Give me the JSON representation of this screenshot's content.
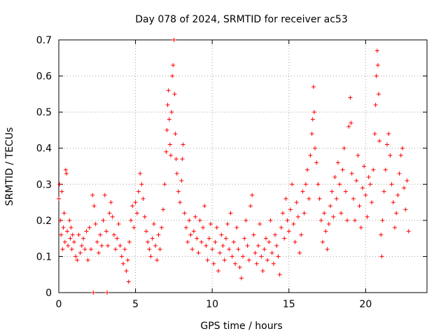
{
  "chart_data": {
    "type": "scatter",
    "title": "Day 078 of 2024, SRMTID for receiver ac53",
    "xlabel": "GPS time / hours",
    "ylabel": "SRMTID / TECUs",
    "xlim": [
      0,
      24
    ],
    "ylim": [
      0,
      0.7
    ],
    "xticks": [
      0,
      5,
      10,
      15,
      20
    ],
    "yticks": [
      0,
      0.1,
      0.2,
      0.3,
      0.4,
      0.5,
      0.6,
      0.7
    ],
    "grid": true,
    "marker": "+",
    "color": "#ff0000",
    "series": [
      {
        "name": "SRMTID",
        "points": [
          [
            0.0,
            0.26
          ],
          [
            0.05,
            0.3
          ],
          [
            0.1,
            0.2
          ],
          [
            0.15,
            0.16
          ],
          [
            0.2,
            0.28
          ],
          [
            0.25,
            0.12
          ],
          [
            0.3,
            0.18
          ],
          [
            0.35,
            0.22
          ],
          [
            0.4,
            0.14
          ],
          [
            0.45,
            0.34
          ],
          [
            0.5,
            0.33
          ],
          [
            0.55,
            0.17
          ],
          [
            0.6,
            0.13
          ],
          [
            0.7,
            0.2
          ],
          [
            0.75,
            0.15
          ],
          [
            0.8,
            0.18
          ],
          [
            0.85,
            0.12
          ],
          [
            0.9,
            0.16
          ],
          [
            1.0,
            0.14
          ],
          [
            1.1,
            0.1
          ],
          [
            1.2,
            0.09
          ],
          [
            1.3,
            0.16
          ],
          [
            1.4,
            0.11
          ],
          [
            1.5,
            0.13
          ],
          [
            1.6,
            0.15
          ],
          [
            1.7,
            0.12
          ],
          [
            1.8,
            0.17
          ],
          [
            1.9,
            0.09
          ],
          [
            2.0,
            0.18
          ],
          [
            2.1,
            0.12
          ],
          [
            2.2,
            0.27
          ],
          [
            2.25,
            0.0
          ],
          [
            2.3,
            0.24
          ],
          [
            2.4,
            0.19
          ],
          [
            2.5,
            0.14
          ],
          [
            2.6,
            0.11
          ],
          [
            2.7,
            0.16
          ],
          [
            2.8,
            0.13
          ],
          [
            2.9,
            0.2
          ],
          [
            3.0,
            0.27
          ],
          [
            3.1,
            0.17
          ],
          [
            3.15,
            0.0
          ],
          [
            3.2,
            0.13
          ],
          [
            3.3,
            0.22
          ],
          [
            3.4,
            0.25
          ],
          [
            3.5,
            0.21
          ],
          [
            3.6,
            0.16
          ],
          [
            3.7,
            0.12
          ],
          [
            3.8,
            0.15
          ],
          [
            3.9,
            0.19
          ],
          [
            4.0,
            0.13
          ],
          [
            4.1,
            0.1
          ],
          [
            4.2,
            0.08
          ],
          [
            4.3,
            0.12
          ],
          [
            4.4,
            0.06
          ],
          [
            4.5,
            0.09
          ],
          [
            4.55,
            0.03
          ],
          [
            4.6,
            0.14
          ],
          [
            4.7,
            0.2
          ],
          [
            4.8,
            0.24
          ],
          [
            4.9,
            0.18
          ],
          [
            5.0,
            0.25
          ],
          [
            5.1,
            0.22
          ],
          [
            5.2,
            0.28
          ],
          [
            5.3,
            0.33
          ],
          [
            5.4,
            0.3
          ],
          [
            5.5,
            0.26
          ],
          [
            5.6,
            0.21
          ],
          [
            5.7,
            0.17
          ],
          [
            5.8,
            0.14
          ],
          [
            5.9,
            0.12
          ],
          [
            6.0,
            0.1
          ],
          [
            6.1,
            0.15
          ],
          [
            6.2,
            0.19
          ],
          [
            6.3,
            0.13
          ],
          [
            6.4,
            0.09
          ],
          [
            6.5,
            0.16
          ],
          [
            6.6,
            0.12
          ],
          [
            6.7,
            0.18
          ],
          [
            6.8,
            0.23
          ],
          [
            6.9,
            0.3
          ],
          [
            7.0,
            0.39
          ],
          [
            7.05,
            0.45
          ],
          [
            7.1,
            0.52
          ],
          [
            7.15,
            0.56
          ],
          [
            7.2,
            0.48
          ],
          [
            7.25,
            0.41
          ],
          [
            7.3,
            0.38
          ],
          [
            7.35,
            0.5
          ],
          [
            7.4,
            0.6
          ],
          [
            7.45,
            0.63
          ],
          [
            7.5,
            0.7
          ],
          [
            7.55,
            0.55
          ],
          [
            7.6,
            0.44
          ],
          [
            7.65,
            0.37
          ],
          [
            7.7,
            0.33
          ],
          [
            7.8,
            0.28
          ],
          [
            7.9,
            0.25
          ],
          [
            8.0,
            0.31
          ],
          [
            8.05,
            0.37
          ],
          [
            8.1,
            0.41
          ],
          [
            8.2,
            0.22
          ],
          [
            8.3,
            0.18
          ],
          [
            8.4,
            0.14
          ],
          [
            8.5,
            0.2
          ],
          [
            8.6,
            0.16
          ],
          [
            8.7,
            0.12
          ],
          [
            8.8,
            0.17
          ],
          [
            8.9,
            0.21
          ],
          [
            9.0,
            0.15
          ],
          [
            9.1,
            0.11
          ],
          [
            9.2,
            0.2
          ],
          [
            9.3,
            0.14
          ],
          [
            9.4,
            0.18
          ],
          [
            9.5,
            0.24
          ],
          [
            9.6,
            0.13
          ],
          [
            9.7,
            0.09
          ],
          [
            9.8,
            0.15
          ],
          [
            9.9,
            0.19
          ],
          [
            10.0,
            0.12
          ],
          [
            10.1,
            0.08
          ],
          [
            10.2,
            0.14
          ],
          [
            10.3,
            0.18
          ],
          [
            10.4,
            0.06
          ],
          [
            10.5,
            0.11
          ],
          [
            10.6,
            0.16
          ],
          [
            10.7,
            0.13
          ],
          [
            10.8,
            0.09
          ],
          [
            10.9,
            0.15
          ],
          [
            11.0,
            0.19
          ],
          [
            11.1,
            0.12
          ],
          [
            11.2,
            0.22
          ],
          [
            11.3,
            0.1
          ],
          [
            11.4,
            0.14
          ],
          [
            11.5,
            0.08
          ],
          [
            11.6,
            0.18
          ],
          [
            11.7,
            0.12
          ],
          [
            11.8,
            0.07
          ],
          [
            11.9,
            0.04
          ],
          [
            12.0,
            0.1
          ],
          [
            12.1,
            0.15
          ],
          [
            12.2,
            0.2
          ],
          [
            12.3,
            0.13
          ],
          [
            12.4,
            0.09
          ],
          [
            12.5,
            0.24
          ],
          [
            12.6,
            0.27
          ],
          [
            12.7,
            0.16
          ],
          [
            12.8,
            0.11
          ],
          [
            12.9,
            0.08
          ],
          [
            13.0,
            0.13
          ],
          [
            13.1,
            0.19
          ],
          [
            13.2,
            0.1
          ],
          [
            13.3,
            0.06
          ],
          [
            13.4,
            0.12
          ],
          [
            13.5,
            0.15
          ],
          [
            13.6,
            0.09
          ],
          [
            13.7,
            0.14
          ],
          [
            13.8,
            0.2
          ],
          [
            13.9,
            0.11
          ],
          [
            14.0,
            0.08
          ],
          [
            14.1,
            0.16
          ],
          [
            14.2,
            0.13
          ],
          [
            14.3,
            0.1
          ],
          [
            14.4,
            0.05
          ],
          [
            14.5,
            0.18
          ],
          [
            14.6,
            0.22
          ],
          [
            14.7,
            0.15
          ],
          [
            14.8,
            0.26
          ],
          [
            14.9,
            0.2
          ],
          [
            15.0,
            0.17
          ],
          [
            15.1,
            0.23
          ],
          [
            15.2,
            0.3
          ],
          [
            15.3,
            0.19
          ],
          [
            15.4,
            0.14
          ],
          [
            15.5,
            0.25
          ],
          [
            15.6,
            0.21
          ],
          [
            15.7,
            0.11
          ],
          [
            15.8,
            0.16
          ],
          [
            15.9,
            0.28
          ],
          [
            16.0,
            0.22
          ],
          [
            16.1,
            0.3
          ],
          [
            16.2,
            0.34
          ],
          [
            16.3,
            0.26
          ],
          [
            16.4,
            0.38
          ],
          [
            16.5,
            0.44
          ],
          [
            16.55,
            0.48
          ],
          [
            16.6,
            0.57
          ],
          [
            16.65,
            0.5
          ],
          [
            16.7,
            0.4
          ],
          [
            16.8,
            0.36
          ],
          [
            16.9,
            0.3
          ],
          [
            17.0,
            0.26
          ],
          [
            17.1,
            0.2
          ],
          [
            17.2,
            0.14
          ],
          [
            17.3,
            0.22
          ],
          [
            17.4,
            0.17
          ],
          [
            17.5,
            0.12
          ],
          [
            17.6,
            0.19
          ],
          [
            17.7,
            0.24
          ],
          [
            17.8,
            0.28
          ],
          [
            17.9,
            0.21
          ],
          [
            18.0,
            0.32
          ],
          [
            18.1,
            0.26
          ],
          [
            18.2,
            0.36
          ],
          [
            18.3,
            0.3
          ],
          [
            18.4,
            0.22
          ],
          [
            18.5,
            0.34
          ],
          [
            18.6,
            0.4
          ],
          [
            18.7,
            0.28
          ],
          [
            18.8,
            0.2
          ],
          [
            18.9,
            0.46
          ],
          [
            19.0,
            0.54
          ],
          [
            19.05,
            0.47
          ],
          [
            19.1,
            0.33
          ],
          [
            19.2,
            0.26
          ],
          [
            19.3,
            0.2
          ],
          [
            19.4,
            0.31
          ],
          [
            19.5,
            0.38
          ],
          [
            19.6,
            0.24
          ],
          [
            19.7,
            0.18
          ],
          [
            19.8,
            0.29
          ],
          [
            19.9,
            0.35
          ],
          [
            20.0,
            0.27
          ],
          [
            20.1,
            0.21
          ],
          [
            20.2,
            0.32
          ],
          [
            20.3,
            0.3
          ],
          [
            20.4,
            0.25
          ],
          [
            20.5,
            0.34
          ],
          [
            20.6,
            0.44
          ],
          [
            20.65,
            0.52
          ],
          [
            20.7,
            0.6
          ],
          [
            20.75,
            0.67
          ],
          [
            20.8,
            0.63
          ],
          [
            20.85,
            0.55
          ],
          [
            20.9,
            0.42
          ],
          [
            21.0,
            0.16
          ],
          [
            21.05,
            0.1
          ],
          [
            21.1,
            0.2
          ],
          [
            21.2,
            0.28
          ],
          [
            21.3,
            0.34
          ],
          [
            21.4,
            0.41
          ],
          [
            21.5,
            0.44
          ],
          [
            21.6,
            0.38
          ],
          [
            21.7,
            0.3
          ],
          [
            21.8,
            0.25
          ],
          [
            21.9,
            0.18
          ],
          [
            22.0,
            0.22
          ],
          [
            22.1,
            0.27
          ],
          [
            22.2,
            0.33
          ],
          [
            22.3,
            0.38
          ],
          [
            22.4,
            0.4
          ],
          [
            22.5,
            0.29
          ],
          [
            22.6,
            0.23
          ],
          [
            22.7,
            0.31
          ],
          [
            22.8,
            0.17
          ]
        ]
      }
    ]
  }
}
